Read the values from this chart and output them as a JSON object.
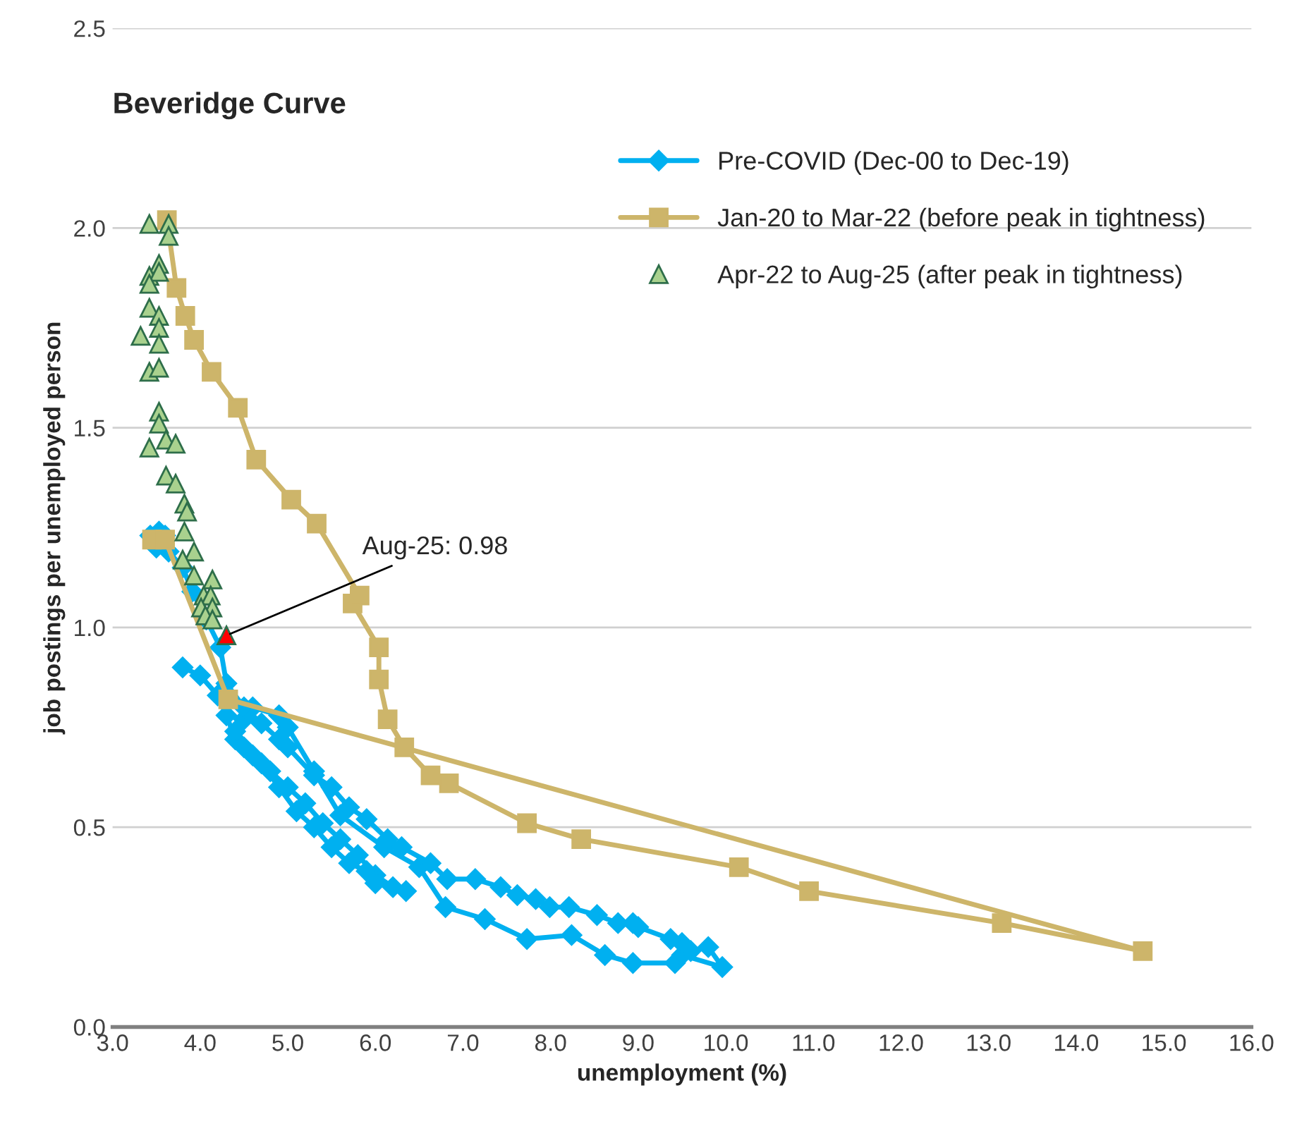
{
  "chart_data": {
    "type": "line",
    "title": "Beveridge Curve",
    "xlabel": "unemployment (%)",
    "ylabel": "job postings per unemployed person",
    "xlim": [
      3.0,
      16.0
    ],
    "xticks": [
      {
        "value": 3,
        "label": "3.0"
      },
      {
        "value": 4,
        "label": "4.0"
      },
      {
        "value": 5,
        "label": "5.0"
      },
      {
        "value": 6,
        "label": "6.0"
      },
      {
        "value": 7,
        "label": "7.0"
      },
      {
        "value": 8,
        "label": "8.0"
      },
      {
        "value": 9,
        "label": "9.0"
      },
      {
        "value": 10,
        "label": "10.0"
      },
      {
        "value": 11,
        "label": "11.0"
      },
      {
        "value": 12,
        "label": "12.0"
      },
      {
        "value": 13,
        "label": "13.0"
      },
      {
        "value": 14,
        "label": "14.0"
      },
      {
        "value": 15,
        "label": "15.0"
      },
      {
        "value": 16,
        "label": "16.0"
      }
    ],
    "ylim": [
      0.0,
      2.5
    ],
    "yticks": [
      {
        "value": 0,
        "label": "0.0"
      },
      0.5,
      {
        "value": 1,
        "label": "1.0"
      },
      1.5,
      {
        "value": 2,
        "label": "2.0"
      },
      2.5
    ],
    "grid": "y",
    "legend": "top right",
    "series": [
      {
        "name": "Pre-COVID (Dec-00 to Dec-19)",
        "marker": "diamond",
        "color": "#00b0f0",
        "x": [
          3.8,
          4.0,
          4.2,
          4.3,
          4.4,
          4.6,
          4.8,
          5.0,
          5.2,
          5.4,
          5.6,
          5.8,
          6.0,
          6.2,
          6.35,
          6.0,
          5.9,
          5.7,
          5.5,
          5.3,
          5.1,
          4.9,
          4.7,
          4.5,
          4.4,
          4.5,
          4.6,
          4.9,
          5.0,
          5.3,
          5.6,
          6.1,
          6.5,
          6.8,
          7.25,
          7.73,
          8.24,
          8.62,
          8.94,
          9.42,
          9.5,
          9.96,
          9.8,
          9.6,
          9.5,
          9.37,
          9.0,
          8.94,
          8.77,
          8.53,
          8.21,
          7.99,
          7.83,
          7.62,
          7.43,
          7.14,
          6.82,
          6.63,
          6.3,
          6.14,
          5.9,
          5.7,
          5.5,
          5.3,
          5.0,
          4.9,
          4.7,
          4.5,
          4.3,
          4.23,
          4.07,
          3.91,
          3.8,
          3.64,
          3.53,
          3.43,
          3.6,
          3.5
        ],
        "values": [
          0.9,
          0.88,
          0.83,
          0.78,
          0.72,
          0.68,
          0.64,
          0.6,
          0.56,
          0.51,
          0.47,
          0.43,
          0.38,
          0.35,
          0.34,
          0.36,
          0.39,
          0.41,
          0.45,
          0.5,
          0.54,
          0.6,
          0.66,
          0.7,
          0.74,
          0.77,
          0.8,
          0.78,
          0.75,
          0.64,
          0.53,
          0.45,
          0.4,
          0.3,
          0.27,
          0.22,
          0.23,
          0.18,
          0.16,
          0.16,
          0.18,
          0.15,
          0.2,
          0.19,
          0.21,
          0.22,
          0.25,
          0.26,
          0.26,
          0.28,
          0.3,
          0.3,
          0.32,
          0.33,
          0.35,
          0.37,
          0.37,
          0.41,
          0.45,
          0.47,
          0.52,
          0.55,
          0.6,
          0.63,
          0.7,
          0.72,
          0.76,
          0.8,
          0.86,
          0.95,
          1.02,
          1.09,
          1.15,
          1.19,
          1.24,
          1.23,
          1.23,
          1.2
        ]
      },
      {
        "name": "Jan-20 to Mar-22 (before peak in tightness)",
        "marker": "square",
        "color": "#cdb56a",
        "x": [
          3.45,
          3.6,
          4.32,
          14.76,
          13.15,
          10.95,
          10.15,
          8.35,
          7.73,
          6.84,
          6.63,
          6.33,
          6.14,
          6.04,
          6.04,
          5.74,
          5.82,
          5.33,
          5.04,
          4.64,
          4.43,
          4.13,
          3.93,
          3.83,
          3.73,
          3.62
        ],
        "values": [
          1.22,
          1.22,
          0.82,
          0.19,
          0.26,
          0.34,
          0.4,
          0.47,
          0.51,
          0.61,
          0.63,
          0.7,
          0.77,
          0.87,
          0.95,
          1.06,
          1.08,
          1.26,
          1.32,
          1.42,
          1.55,
          1.64,
          1.72,
          1.78,
          1.85,
          2.02
        ]
      },
      {
        "name": "Apr-22 to Aug-25 (after peak in tightness)",
        "type": "scatter",
        "marker": "triangle",
        "color": "#a9d18e",
        "x": [
          3.42,
          3.64,
          3.64,
          3.53,
          3.42,
          3.53,
          3.42,
          3.42,
          3.53,
          3.53,
          3.32,
          3.53,
          3.42,
          3.53,
          3.53,
          3.53,
          3.42,
          3.61,
          3.72,
          3.61,
          3.72,
          3.82,
          3.85,
          3.82,
          3.93,
          3.8,
          3.93,
          4.14,
          4.04,
          4.12,
          4.01,
          4.14,
          4.06,
          4.14
        ],
        "values": [
          2.01,
          2.01,
          1.98,
          1.91,
          1.88,
          1.89,
          1.86,
          1.8,
          1.78,
          1.75,
          1.73,
          1.71,
          1.64,
          1.65,
          1.54,
          1.51,
          1.45,
          1.47,
          1.46,
          1.38,
          1.36,
          1.31,
          1.29,
          1.24,
          1.19,
          1.17,
          1.13,
          1.12,
          1.08,
          1.08,
          1.05,
          1.05,
          1.03,
          1.02
        ]
      },
      {
        "type": "scatter",
        "marker": "triangle",
        "color": "#ff0000",
        "x": [
          4.3
        ],
        "values": [
          0.98
        ]
      }
    ],
    "annotations": [
      {
        "text": "Aug-25: 0.98",
        "x": 4.3,
        "y": 0.98
      }
    ]
  }
}
